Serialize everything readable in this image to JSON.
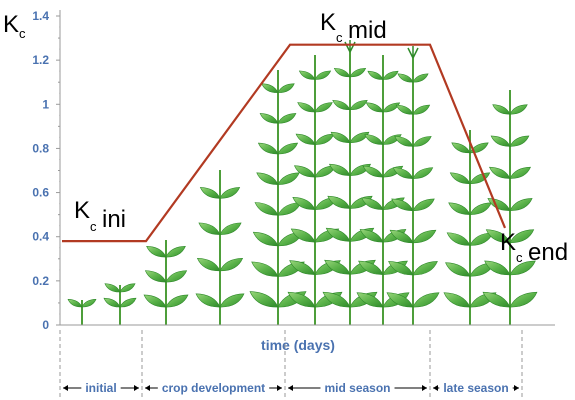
{
  "chart_data": {
    "type": "line",
    "title": "",
    "xlabel": "time (days)",
    "ylabel_main": "K",
    "ylabel_sub": "c",
    "ylim": [
      0,
      1.4
    ],
    "yticks": [
      "0",
      "0.2",
      "0.4",
      "0.6",
      "0.8",
      "1",
      "1.2",
      "1.4"
    ],
    "series": [
      {
        "x_stages": [
          "start",
          "end-initial",
          "end-crop-development",
          "end-mid-season",
          "end-late-season"
        ],
        "values": [
          0.38,
          0.38,
          1.27,
          1.27,
          0.44
        ]
      }
    ],
    "annotations": [
      {
        "main": "K",
        "sub": "c",
        "text": "ini"
      },
      {
        "main": "K",
        "sub": "c",
        "text": "mid"
      },
      {
        "main": "K",
        "sub": "c",
        "text": "end"
      }
    ],
    "stages": [
      "initial",
      "crop development",
      "mid season",
      "late season"
    ],
    "grid": false,
    "colors": {
      "line": "#b23a22",
      "axis_text": "#4a72b0",
      "axis_line": "#9a9a9a",
      "plant_leaf": "#5bb34a",
      "plant_leaf_dark": "#2f8a2a",
      "plant_stem": "#4e9e3a"
    }
  }
}
